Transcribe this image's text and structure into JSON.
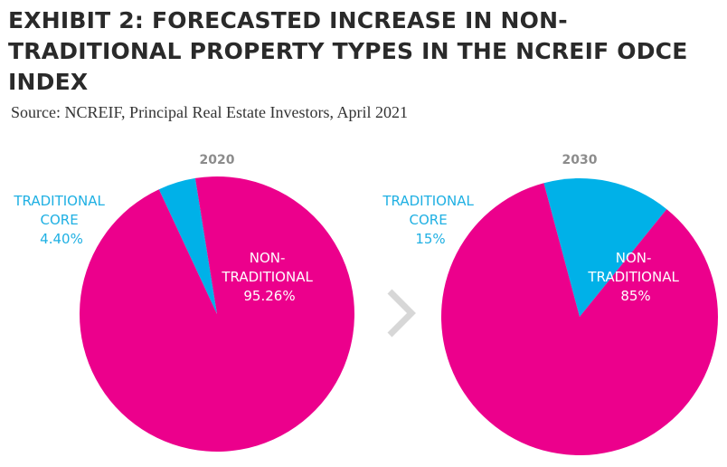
{
  "title": "EXHIBIT 2: FORECASTED INCREASE IN NON-TRADITIONAL PROPERTY TYPES IN THE NCREIF ODCE INDEX",
  "source": "Source: NCREIF, Principal Real Estate Investors, April 2021",
  "colors": {
    "traditional": "#00b1e8",
    "non_traditional": "#ec008c",
    "arrow": "#d7d7d7"
  },
  "arrow_icon": "chevron-right-icon",
  "chart_data": [
    {
      "type": "pie",
      "title": "2020",
      "slices": [
        {
          "label_lines": [
            "TRADITIONAL",
            "CORE",
            "4.40%"
          ],
          "value": 4.4,
          "color": "#00b1e8"
        },
        {
          "label_lines": [
            "NON-",
            "TRADITIONAL",
            "95.26%"
          ],
          "value": 95.26,
          "color": "#ec008c"
        }
      ]
    },
    {
      "type": "pie",
      "title": "2030",
      "slices": [
        {
          "label_lines": [
            "TRADITIONAL",
            "CORE",
            "15%"
          ],
          "value": 15,
          "color": "#00b1e8"
        },
        {
          "label_lines": [
            "NON-",
            "TRADITIONAL",
            "85%"
          ],
          "value": 85,
          "color": "#ec008c"
        }
      ]
    }
  ]
}
